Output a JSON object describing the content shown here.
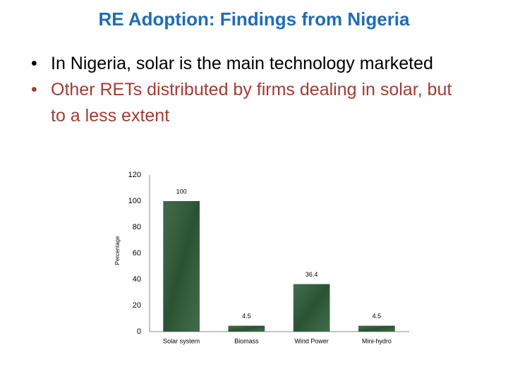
{
  "header": {
    "title": "RE Adoption: Findings from Nigeria"
  },
  "bullets": [
    {
      "text": "In Nigeria, solar is the main technology marketed",
      "color": "#000000"
    },
    {
      "text": "Other RETs distributed by firms dealing in solar, but to a less extent",
      "color": "#a33b32"
    }
  ],
  "chart_data": {
    "type": "bar",
    "ylabel": "Percentage",
    "categories": [
      "Solar system",
      "Biomass",
      "Wind Power",
      "Mini-hydro"
    ],
    "values": [
      100,
      4.5,
      36.4,
      4.5
    ],
    "color": "#2f5d3a",
    "ylim": [
      0,
      120
    ],
    "yticks": [
      0,
      20,
      40,
      60,
      80,
      100,
      120
    ],
    "grid": false
  }
}
